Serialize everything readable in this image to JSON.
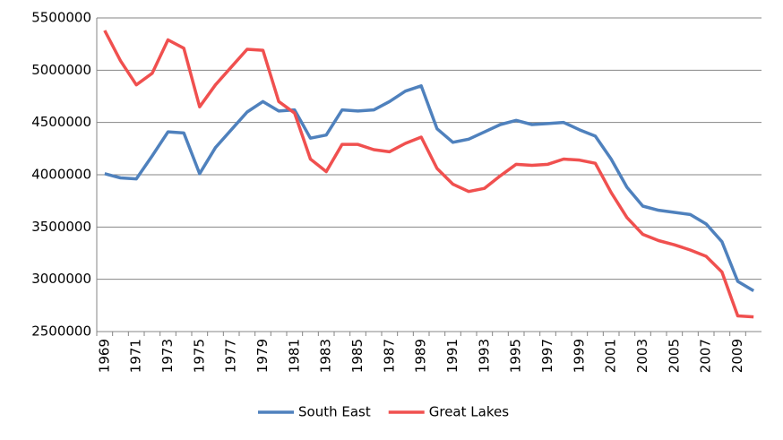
{
  "chart_data": {
    "type": "line",
    "categories": [
      "1969",
      null,
      "1971",
      null,
      "1973",
      null,
      "1975",
      null,
      "1977",
      null,
      "1979",
      null,
      "1981",
      null,
      "1983",
      null,
      "1985",
      null,
      "1987",
      null,
      "1989",
      null,
      "1991",
      null,
      "1993",
      null,
      "1995",
      null,
      "1997",
      null,
      "1999",
      null,
      "2001",
      null,
      "2003",
      null,
      "2005",
      null,
      "2007",
      null,
      "2009",
      null
    ],
    "series": [
      {
        "name": "South East",
        "color": "#4f81bd",
        "values": [
          4010000,
          3970000,
          3960000,
          4180000,
          4410000,
          4400000,
          4010000,
          4260000,
          4430000,
          4600000,
          4700000,
          4610000,
          4620000,
          4350000,
          4380000,
          4620000,
          4610000,
          4620000,
          4700000,
          4800000,
          4850000,
          4440000,
          4310000,
          4340000,
          4410000,
          4480000,
          4520000,
          4480000,
          4490000,
          4500000,
          4430000,
          4370000,
          4150000,
          3880000,
          3700000,
          3660000,
          3640000,
          3620000,
          3530000,
          3360000,
          2980000,
          2890000
        ]
      },
      {
        "name": "Great Lakes",
        "color": "#f0504f",
        "values": [
          5380000,
          5090000,
          4860000,
          4970000,
          5290000,
          5210000,
          4650000,
          4860000,
          5030000,
          5200000,
          5190000,
          4700000,
          4590000,
          4150000,
          4030000,
          4290000,
          4290000,
          4240000,
          4220000,
          4300000,
          4360000,
          4060000,
          3910000,
          3840000,
          3870000,
          3990000,
          4100000,
          4090000,
          4100000,
          4150000,
          4140000,
          4110000,
          3830000,
          3590000,
          3430000,
          3370000,
          3330000,
          3280000,
          3220000,
          3070000,
          2650000,
          2640000
        ]
      }
    ],
    "ylim": [
      2500000,
      5500000
    ],
    "yticks": [
      2500000,
      3000000,
      3500000,
      4000000,
      4500000,
      5000000,
      5500000
    ],
    "grid": true,
    "legend": "bottom"
  }
}
